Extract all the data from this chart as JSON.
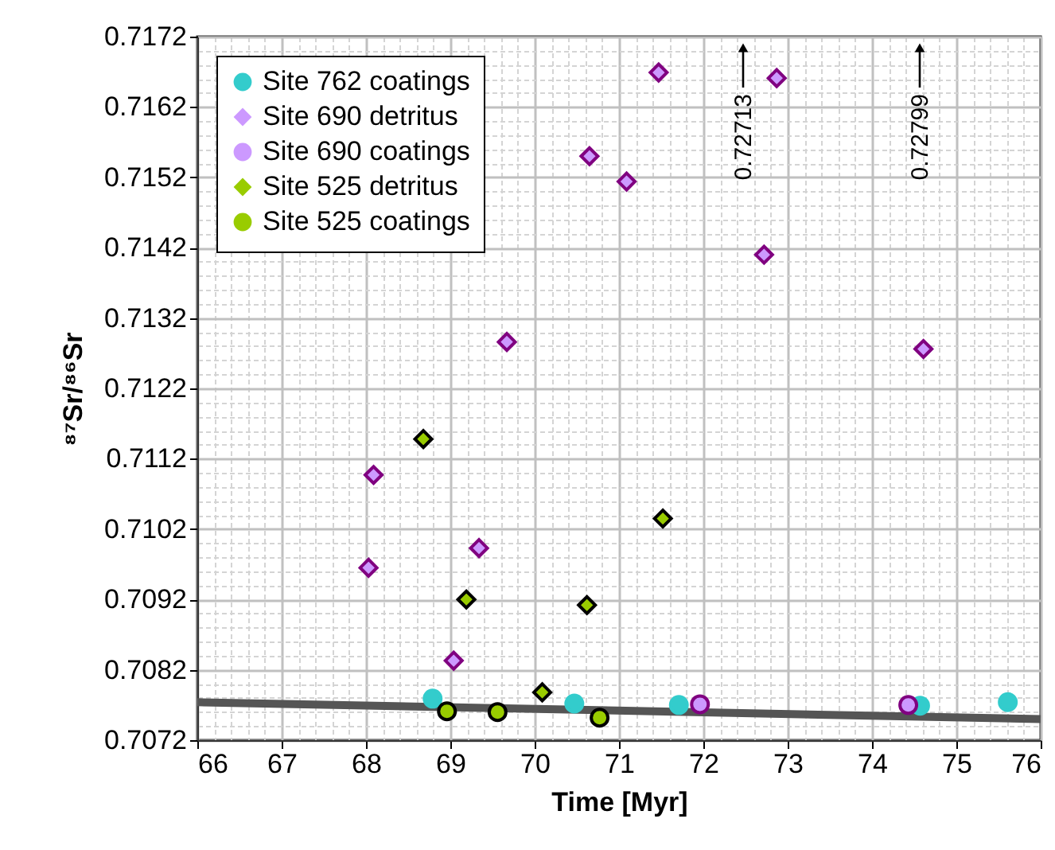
{
  "chart_data": {
    "type": "scatter",
    "xlabel": "Time [Myr]",
    "ylabel": "⁸⁷Sr/⁸⁶Sr",
    "xlim": [
      66,
      76
    ],
    "xticks": [
      66,
      67,
      68,
      69,
      70,
      71,
      72,
      73,
      74,
      75,
      76
    ],
    "ylim": [
      0.7072,
      0.7172
    ],
    "yticks": [
      0.7072,
      0.7082,
      0.7092,
      0.7102,
      0.7112,
      0.7122,
      0.7132,
      0.7142,
      0.7152,
      0.7162,
      0.7172
    ],
    "grid": true,
    "legend": "top left",
    "series": [
      {
        "name": "Site 762 coatings",
        "color": "#33cccc",
        "marker": "circle",
        "x": [
          68.79,
          70.47,
          71.71,
          74.57,
          75.61
        ],
        "values": [
          0.70779,
          0.70772,
          0.7077,
          0.70769,
          0.70774
        ]
      },
      {
        "name": "Site 690 detritus",
        "color": "#cc99ff",
        "marker": "diamond",
        "x": [
          68.03,
          68.09,
          69.34,
          69.04,
          69.67,
          70.65,
          71.09,
          71.47,
          72.87,
          72.72,
          74.61
        ],
        "values": [
          0.70965,
          0.71097,
          0.70993,
          0.70833,
          0.71286,
          0.7155,
          0.71514,
          0.71669,
          0.71661,
          0.7141,
          0.71276
        ]
      },
      {
        "name": "Site 690 coatings",
        "color": "#cc99ff",
        "marker": "circle",
        "x": [
          71.96,
          74.43
        ],
        "values": [
          0.70771,
          0.7077
        ]
      },
      {
        "name": "Site 525 detritus",
        "color": "#99cc00",
        "marker": "diamond",
        "x": [
          68.68,
          69.19,
          70.62,
          70.09,
          71.52
        ],
        "values": [
          0.71148,
          0.7092,
          0.70912,
          0.70788,
          0.71035
        ]
      },
      {
        "name": "Site 525 coatings",
        "color": "#99cc00",
        "marker": "circle",
        "x": [
          68.96,
          69.56,
          70.77
        ],
        "values": [
          0.70761,
          0.7076,
          0.70752
        ]
      },
      {
        "type": "line",
        "color": "#555555",
        "x": [
          66,
          76
        ],
        "values": [
          0.70774,
          0.7075
        ]
      }
    ],
    "annotations": [
      "0.72713",
      "0.72799"
    ]
  }
}
